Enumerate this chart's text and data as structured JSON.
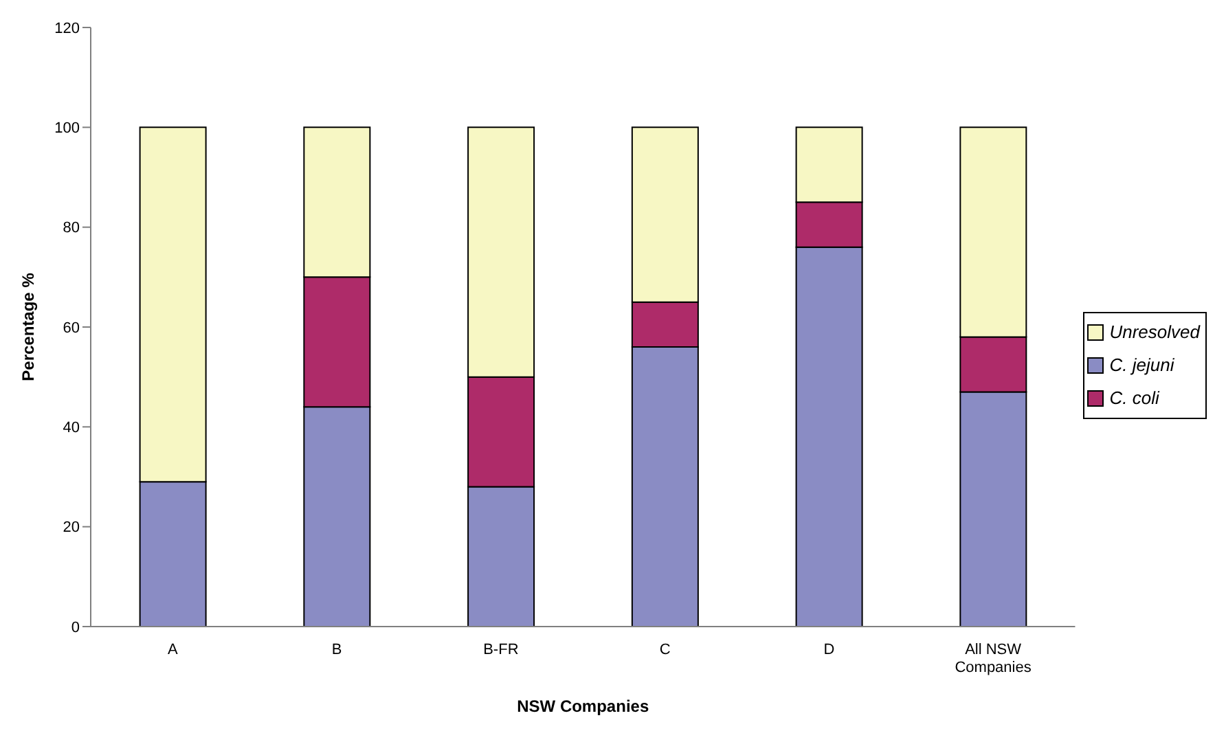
{
  "chart_data": {
    "type": "bar",
    "stacked": true,
    "xlabel": "NSW Companies",
    "ylabel": "Percentage %",
    "categories": [
      "A",
      "B",
      "B-FR",
      "C",
      "D",
      "All NSW Companies"
    ],
    "series": [
      {
        "name": "C. jejuni",
        "color": "#8a8cc4",
        "values": [
          29,
          44,
          28,
          56,
          76,
          47
        ]
      },
      {
        "name": "C. coli",
        "color": "#ae2b69",
        "values": [
          0,
          26,
          22,
          9,
          9,
          11
        ]
      },
      {
        "name": "Unresolved",
        "color": "#f7f7c4",
        "values": [
          71,
          30,
          50,
          35,
          15,
          42
        ]
      }
    ],
    "ylim": [
      0,
      120
    ],
    "yticks": [
      0,
      20,
      40,
      60,
      80,
      100,
      120
    ],
    "grid": false,
    "legend": "right"
  }
}
